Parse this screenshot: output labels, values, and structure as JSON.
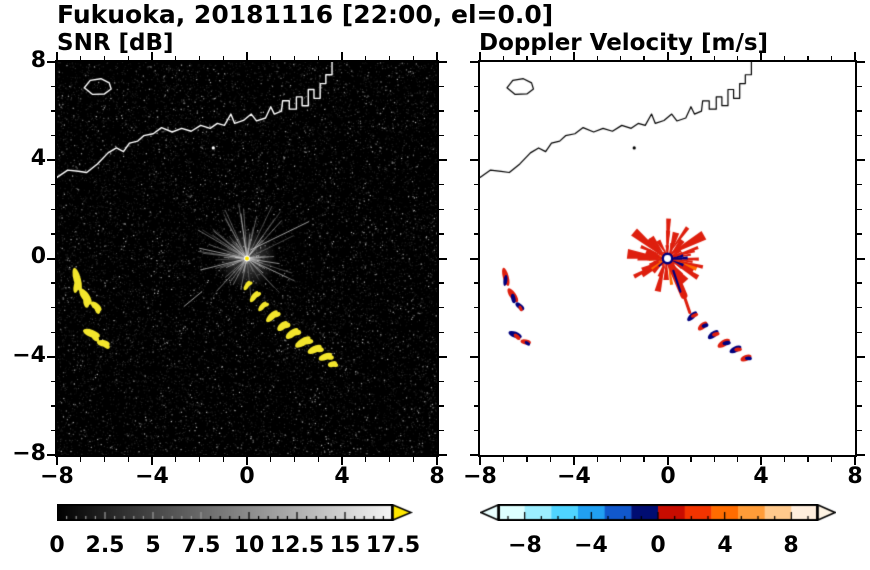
{
  "title": "Fukuoka, 20181116 [22:00, el=0.0]",
  "panels": {
    "snr": {
      "label": "SNR [dB]",
      "x_tick_labels": [
        "−8",
        "−4",
        "0",
        "4",
        "8"
      ],
      "y_tick_labels": [
        "8",
        "4",
        "0",
        "−4",
        "−8"
      ],
      "colorbar": {
        "tick_labels": [
          "0",
          "2.5",
          "5",
          "7.5",
          "10",
          "12.5",
          "15",
          "17.5"
        ],
        "tick_values": [
          0,
          2.5,
          5,
          7.5,
          10,
          12.5,
          15,
          17.5
        ],
        "range": [
          0,
          17.5
        ],
        "minor_tick_step": 0.5,
        "gradient": [
          "#000000",
          "#f6f6f6"
        ],
        "overflow_arrow_color": "#ffe800"
      }
    },
    "doppler": {
      "label": "Doppler Velocity [m/s]",
      "x_tick_labels": [
        "−8",
        "−4",
        "0",
        "4",
        "8"
      ],
      "colorbar": {
        "tick_labels": [
          "−8",
          "−4",
          "0",
          "4",
          "8"
        ],
        "tick_values": [
          -8,
          -4,
          0,
          4,
          8
        ],
        "range": [
          -9.6,
          9.6
        ],
        "minor_tick_step": 1,
        "segment_colors": [
          "#ddffff",
          "#9ceeff",
          "#4fd4ff",
          "#21a0f2",
          "#1158cc",
          "#000d72",
          "#c80c00",
          "#f23400",
          "#ff6c00",
          "#ff9c38",
          "#ffc98c",
          "#ffeedd"
        ],
        "underflow_arrow_color": "#eaffff",
        "overflow_arrow_color": "#fff4e4"
      }
    }
  },
  "chart_data": {
    "type": "heatmap",
    "subplots": [
      "SNR [dB]",
      "Doppler Velocity [m/s]"
    ],
    "xlim": [
      -8,
      8
    ],
    "ylim": [
      -8,
      8
    ],
    "major_ticks": [
      -8,
      -4,
      0,
      4,
      8
    ],
    "minor_tick_step": 1,
    "radar_center": [
      0,
      0
    ],
    "coastline": {
      "mainland": [
        [
          -8.0,
          3.3
        ],
        [
          -7.55,
          3.6
        ],
        [
          -7.1,
          3.55
        ],
        [
          -6.75,
          3.5
        ],
        [
          -6.3,
          3.85
        ],
        [
          -5.85,
          4.3
        ],
        [
          -5.5,
          4.5
        ],
        [
          -5.2,
          4.35
        ],
        [
          -4.95,
          4.7
        ],
        [
          -4.6,
          4.78
        ],
        [
          -4.35,
          5.0
        ],
        [
          -3.95,
          5.08
        ],
        [
          -3.6,
          5.33
        ],
        [
          -3.15,
          5.15
        ],
        [
          -2.75,
          5.3
        ],
        [
          -2.35,
          5.18
        ],
        [
          -1.95,
          5.42
        ],
        [
          -1.55,
          5.3
        ],
        [
          -1.25,
          5.5
        ],
        [
          -0.95,
          5.42
        ],
        [
          -0.68,
          5.88
        ],
        [
          -0.52,
          5.5
        ],
        [
          -0.15,
          5.62
        ],
        [
          0.18,
          5.88
        ],
        [
          0.4,
          5.6
        ],
        [
          0.78,
          5.72
        ],
        [
          1.0,
          6.18
        ],
        [
          1.15,
          5.88
        ],
        [
          1.45,
          6.0
        ],
        [
          1.5,
          6.42
        ],
        [
          1.78,
          6.42
        ],
        [
          1.78,
          6.08
        ],
        [
          2.08,
          6.08
        ],
        [
          2.08,
          6.58
        ],
        [
          2.32,
          6.58
        ],
        [
          2.32,
          6.22
        ],
        [
          2.58,
          6.22
        ],
        [
          2.58,
          6.88
        ],
        [
          2.82,
          6.88
        ],
        [
          2.82,
          6.52
        ],
        [
          3.08,
          6.52
        ],
        [
          3.08,
          7.12
        ],
        [
          3.32,
          7.12
        ],
        [
          3.32,
          7.48
        ],
        [
          3.58,
          7.48
        ],
        [
          3.58,
          8.05
        ]
      ],
      "island": [
        [
          -6.85,
          6.95
        ],
        [
          -6.6,
          7.25
        ],
        [
          -6.15,
          7.32
        ],
        [
          -5.8,
          7.15
        ],
        [
          -5.72,
          6.9
        ],
        [
          -6.0,
          6.7
        ],
        [
          -6.5,
          6.68
        ]
      ],
      "islet": [
        -1.42,
        4.5
      ]
    },
    "snr": {
      "background": "#000000",
      "clutter_color": "#f3e62c",
      "speckle_seed": 7,
      "speckle_count": 14000,
      "bright_speckle_count": 1300,
      "spoke_count": 95,
      "spoke_max_len": 2.3,
      "streaks": [
        [
          [
            0.15,
            0.35
          ],
          [
            2.6,
            1.5
          ]
        ],
        [
          [
            -2.65,
            -1.95
          ],
          [
            -1.9,
            -1.35
          ]
        ]
      ],
      "left_blobs": [
        [
          -7.15,
          -0.85,
          1.0,
          0.3,
          75
        ],
        [
          -6.8,
          -1.55,
          0.8,
          0.32,
          55
        ],
        [
          -6.35,
          -1.95,
          0.55,
          0.26,
          40
        ],
        [
          -6.55,
          -3.05,
          0.75,
          0.3,
          20
        ],
        [
          -6.05,
          -3.45,
          0.55,
          0.26,
          10
        ]
      ],
      "chain_blobs": [
        [
          0.0,
          -1.1,
          0.45,
          0.18,
          -60
        ],
        [
          0.3,
          -1.55,
          0.55,
          0.22,
          -55
        ],
        [
          0.65,
          -1.95,
          0.5,
          0.2,
          -50
        ],
        [
          1.05,
          -2.35,
          0.65,
          0.26,
          -45
        ],
        [
          1.5,
          -2.75,
          0.55,
          0.28,
          -42
        ],
        [
          1.9,
          -3.05,
          0.65,
          0.28,
          -38
        ],
        [
          2.35,
          -3.4,
          0.75,
          0.3,
          -32
        ],
        [
          2.85,
          -3.7,
          0.65,
          0.28,
          -26
        ],
        [
          3.3,
          -4.0,
          0.6,
          0.26,
          -22
        ],
        [
          3.6,
          -4.3,
          0.4,
          0.22,
          -18
        ]
      ]
    },
    "doppler": {
      "background": "#ffffff",
      "colors": {
        "red": "#de1f0e",
        "navy": "#00007e",
        "orange": "#ff6c00"
      },
      "seed": 11,
      "wedge_count": 72,
      "burst_max_len": 1.45,
      "tail": {
        "from": [
          0.12,
          -0.2
        ],
        "mid": [
          0.7,
          -1.5
        ],
        "to": [
          0.95,
          -2.2
        ]
      },
      "navy_streak": [
        [
          0.25,
          -0.5
        ],
        [
          0.55,
          -1.35
        ]
      ],
      "center_hole_radius": 0.2,
      "left_blobs": [
        [
          -6.9,
          -0.75,
          0.8,
          0.24,
          75,
          "red",
          "navy"
        ],
        [
          -6.6,
          -1.5,
          0.7,
          0.26,
          55,
          "red",
          "navy"
        ],
        [
          -6.3,
          -1.95,
          0.45,
          0.2,
          40,
          "navy",
          "red"
        ],
        [
          -6.5,
          -3.1,
          0.6,
          0.24,
          20,
          "navy",
          "red"
        ],
        [
          -6.05,
          -3.4,
          0.45,
          0.2,
          10,
          "red",
          "navy"
        ]
      ],
      "chain_blobs": [
        [
          1.05,
          -2.35,
          0.55,
          0.22,
          -45,
          "navy",
          "red"
        ],
        [
          1.5,
          -2.75,
          0.5,
          0.24,
          -42,
          "red",
          "navy"
        ],
        [
          1.95,
          -3.1,
          0.55,
          0.24,
          -38,
          "navy",
          "red"
        ],
        [
          2.4,
          -3.45,
          0.6,
          0.26,
          -32,
          "red",
          "navy"
        ],
        [
          2.9,
          -3.7,
          0.55,
          0.24,
          -26,
          "navy",
          "red"
        ],
        [
          3.35,
          -4.05,
          0.5,
          0.24,
          -22,
          "red",
          "navy"
        ]
      ]
    }
  }
}
